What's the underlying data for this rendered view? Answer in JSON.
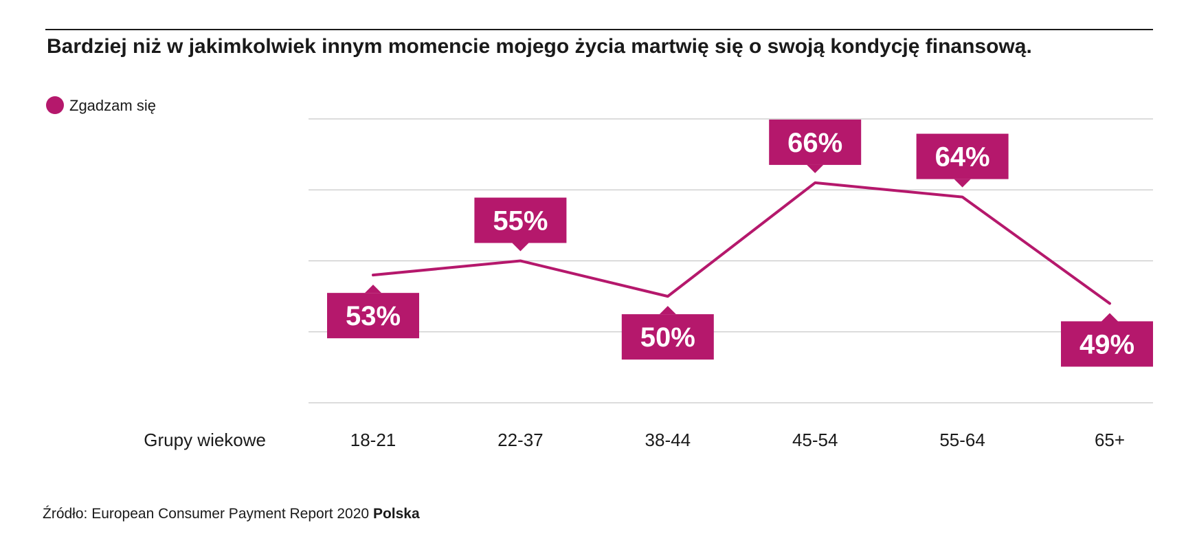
{
  "colors": {
    "accent": "#b5186c",
    "grid": "#c8c8c8",
    "text": "#1a1a1a",
    "rule": "#1a1a1a"
  },
  "chart_data": {
    "type": "line",
    "title": "Bardziej niż w jakimkolwiek innym momencie mojego życia martwię się o swoją kondycję finansową.",
    "legend": "Zgadzam się",
    "legend_position": "top-left",
    "xlabel": "Grupy wiekowe",
    "categories": [
      "18-21",
      "22-37",
      "38-44",
      "45-54",
      "55-64",
      "65+"
    ],
    "series": [
      {
        "name": "Zgadzam się",
        "values": [
          53,
          55,
          50,
          66,
          64,
          49
        ],
        "labels": [
          "53%",
          "55%",
          "50%",
          "66%",
          "64%",
          "49%"
        ],
        "label_side": [
          "below",
          "above",
          "below",
          "above",
          "above",
          "below"
        ]
      }
    ],
    "ylim": [
      35,
      75
    ],
    "grid": true
  },
  "source": {
    "prefix": "Źródło: European Consumer Payment Report 2020 ",
    "bold": "Polska"
  }
}
